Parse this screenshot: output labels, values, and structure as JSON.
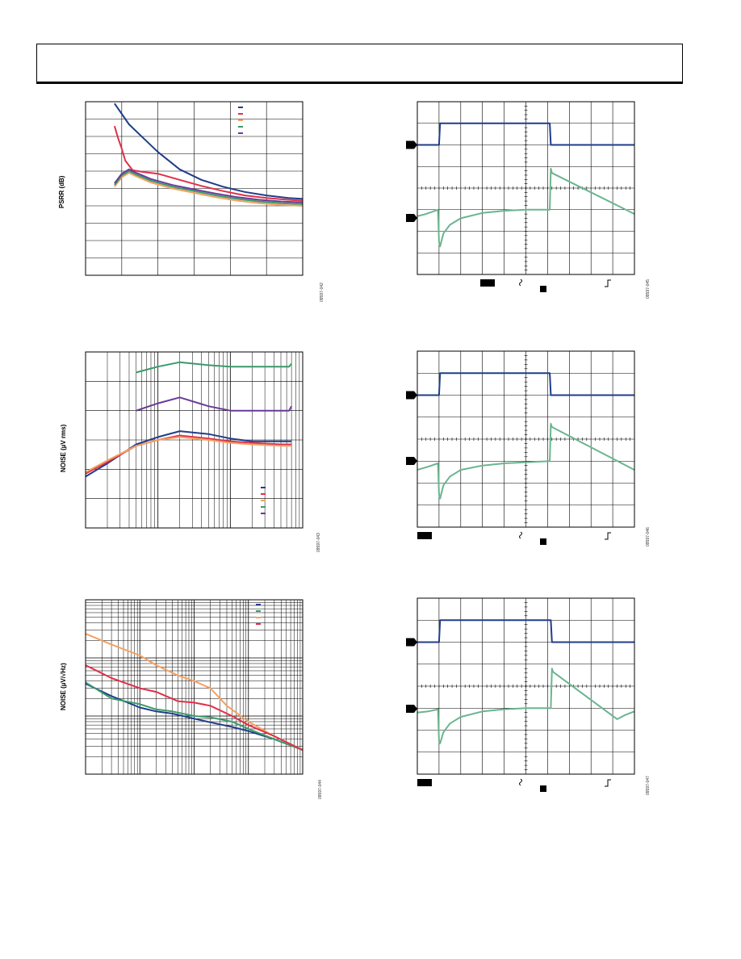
{
  "page": {
    "header_title": ""
  },
  "chart_data": [
    {
      "id": "psrr",
      "type": "line",
      "title": "",
      "xlabel": "",
      "ylabel": "PSRR (dB)",
      "figure_number": "09597-042",
      "xlim": [
        0,
        6
      ],
      "ylim": [
        0,
        10
      ],
      "grid": true,
      "legend_position": "top-right",
      "series": [
        {
          "color": "#1f3d8a",
          "x": [
            0.8,
            1.2,
            1.6,
            2,
            2.6,
            3.2,
            3.8,
            4.4,
            5,
            5.6,
            6
          ],
          "y": [
            9.9,
            8.7,
            7.9,
            7.1,
            6.1,
            5.5,
            5.1,
            4.8,
            4.6,
            4.45,
            4.4
          ]
        },
        {
          "color": "#e0304a",
          "x": [
            0.8,
            0.9,
            1.0,
            1.1,
            1.3,
            1.6,
            2,
            2.6,
            3.2,
            3.8,
            4.4,
            5,
            5.6,
            6
          ],
          "y": [
            8.6,
            7.9,
            7.3,
            6.6,
            6.05,
            5.95,
            5.85,
            5.5,
            5.15,
            4.85,
            4.6,
            4.45,
            4.35,
            4.3
          ]
        },
        {
          "color": "#f5a060",
          "x": [
            0.8,
            1.0,
            1.2,
            1.4,
            1.8,
            2.4,
            3,
            3.6,
            4.2,
            4.8,
            5.4,
            6
          ],
          "y": [
            5.1,
            5.65,
            5.9,
            5.7,
            5.35,
            5.0,
            4.75,
            4.5,
            4.3,
            4.15,
            4.05,
            4.0
          ]
        },
        {
          "color": "#3a9a6a",
          "x": [
            0.8,
            1.0,
            1.2,
            1.4,
            1.8,
            2.4,
            3,
            3.6,
            4.2,
            4.8,
            5.4,
            6
          ],
          "y": [
            5.2,
            5.75,
            6.0,
            5.8,
            5.45,
            5.1,
            4.85,
            4.6,
            4.4,
            4.25,
            4.15,
            4.1
          ]
        },
        {
          "color": "#6a3a9a",
          "x": [
            0.8,
            1.0,
            1.2,
            1.4,
            1.8,
            2.4,
            3,
            3.6,
            4.2,
            4.8,
            5.4,
            6
          ],
          "y": [
            5.3,
            5.85,
            6.1,
            5.9,
            5.55,
            5.2,
            4.95,
            4.7,
            4.5,
            4.35,
            4.25,
            4.2
          ]
        }
      ]
    },
    {
      "id": "noise-rms",
      "type": "line",
      "title": "",
      "xlabel": "",
      "ylabel": "NOISE (µV rms)",
      "figure_number": "09597-043",
      "xscale": "log",
      "xlim": [
        1,
        1000
      ],
      "ylim": [
        0,
        6
      ],
      "grid": true,
      "legend_position": "bottom-right",
      "series": [
        {
          "color": "#1f3d8a",
          "x": [
            1,
            2,
            5,
            10,
            20,
            50,
            100,
            200,
            500,
            700
          ],
          "y": [
            1.75,
            2.2,
            2.85,
            3.1,
            3.3,
            3.2,
            3.05,
            2.95,
            2.95,
            2.95
          ]
        },
        {
          "color": "#e0304a",
          "x": [
            1,
            2,
            5,
            10,
            20,
            50,
            100,
            200,
            500,
            700
          ],
          "y": [
            1.85,
            2.25,
            2.8,
            3.0,
            3.15,
            3.05,
            2.95,
            2.9,
            2.85,
            2.85
          ]
        },
        {
          "color": "#f5a060",
          "x": [
            1,
            2,
            5,
            10,
            20,
            50,
            100,
            200,
            500,
            700
          ],
          "y": [
            1.9,
            2.3,
            2.8,
            3.0,
            3.1,
            3.0,
            2.9,
            2.85,
            2.8,
            2.8
          ]
        },
        {
          "color": "#3a9a6a",
          "x": [
            5,
            10,
            20,
            50,
            100,
            200,
            500,
            650,
            700
          ],
          "y": [
            5.3,
            5.5,
            5.65,
            5.55,
            5.5,
            5.5,
            5.5,
            5.5,
            5.6
          ]
        },
        {
          "color": "#6a3a9a",
          "x": [
            5,
            10,
            20,
            50,
            100,
            200,
            500,
            650,
            700
          ],
          "y": [
            4.0,
            4.25,
            4.45,
            4.15,
            4.0,
            4.0,
            4.0,
            4.0,
            4.15
          ]
        }
      ]
    },
    {
      "id": "noise-density",
      "type": "line",
      "title": "",
      "xlabel": "",
      "ylabel": "NOISE (µV/√Hz)",
      "figure_number": "09597-044",
      "xscale": "log",
      "yscale": "log",
      "xlim": [
        10,
        100000
      ],
      "ylim": [
        0.01,
        10
      ],
      "grid": true,
      "legend_position": "top-right",
      "series": [
        {
          "color": "#1f3d8a",
          "x": [
            10,
            30,
            100,
            200,
            400,
            1000,
            2000,
            5000,
            10000,
            30000,
            100000
          ],
          "y": [
            0.36,
            0.22,
            0.14,
            0.12,
            0.11,
            0.09,
            0.078,
            0.065,
            0.055,
            0.04,
            0.026
          ]
        },
        {
          "color": "#3a9a6a",
          "x": [
            10,
            30,
            100,
            200,
            400,
            1000,
            2000,
            5000,
            10000,
            30000,
            100000
          ],
          "y": [
            0.38,
            0.2,
            0.16,
            0.13,
            0.12,
            0.1,
            0.095,
            0.08,
            0.06,
            0.04,
            0.026
          ]
        },
        {
          "color": "#f5a060",
          "x": [
            10,
            30,
            100,
            200,
            500,
            1000,
            2000,
            4000,
            10000,
            30000,
            100000
          ],
          "y": [
            2.6,
            1.7,
            1.1,
            0.75,
            0.5,
            0.4,
            0.3,
            0.15,
            0.08,
            0.045,
            0.026
          ]
        },
        {
          "color": "#e0304a",
          "x": [
            10,
            30,
            100,
            200,
            500,
            1000,
            2000,
            5000,
            10000,
            30000,
            100000
          ],
          "y": [
            0.75,
            0.45,
            0.3,
            0.26,
            0.18,
            0.17,
            0.15,
            0.1,
            0.07,
            0.045,
            0.026
          ]
        }
      ]
    },
    {
      "id": "scope-1",
      "type": "line",
      "title": "",
      "xlabel": "",
      "ylabel": "",
      "figure_number": "09597-045",
      "xlim": [
        0,
        10
      ],
      "ylim": [
        0,
        8
      ],
      "grid": true,
      "series": [
        {
          "color": "#1f3d8a",
          "x": [
            0,
            1.0,
            1.05,
            6.1,
            6.15,
            10
          ],
          "y": [
            6.0,
            6.0,
            7.0,
            7.0,
            6.0,
            6.0
          ]
        },
        {
          "color": "#6ab58f",
          "x": [
            0,
            0.4,
            0.95,
            1.0,
            1.05,
            1.2,
            1.5,
            2,
            3,
            4,
            5,
            6.1,
            6.15,
            6.2,
            10
          ],
          "y": [
            2.7,
            2.8,
            3.0,
            1.5,
            1.3,
            1.9,
            2.3,
            2.6,
            2.85,
            2.95,
            3.0,
            3.0,
            4.9,
            4.7,
            2.8
          ]
        }
      ]
    },
    {
      "id": "scope-2",
      "type": "line",
      "title": "",
      "xlabel": "",
      "ylabel": "",
      "figure_number": "09597-046",
      "xlim": [
        0,
        10
      ],
      "ylim": [
        0,
        8
      ],
      "grid": true,
      "series": [
        {
          "color": "#1f3d8a",
          "x": [
            0,
            1.0,
            1.05,
            6.1,
            6.15,
            10
          ],
          "y": [
            6.0,
            6.0,
            7.0,
            7.0,
            6.0,
            6.0
          ]
        },
        {
          "color": "#6ab58f",
          "x": [
            0,
            0.5,
            0.95,
            1.0,
            1.05,
            1.2,
            1.5,
            2,
            3,
            4,
            5,
            6.1,
            6.15,
            6.2,
            10
          ],
          "y": [
            2.6,
            2.75,
            2.9,
            1.5,
            1.3,
            1.9,
            2.3,
            2.6,
            2.8,
            2.9,
            2.95,
            3.0,
            4.7,
            4.55,
            2.6
          ]
        }
      ]
    },
    {
      "id": "scope-3",
      "type": "line",
      "title": "",
      "xlabel": "",
      "ylabel": "",
      "figure_number": "09597-047",
      "xlim": [
        0,
        10
      ],
      "ylim": [
        0,
        8
      ],
      "grid": true,
      "series": [
        {
          "color": "#1f3d8a",
          "x": [
            0,
            1.0,
            1.05,
            6.15,
            6.2,
            10
          ],
          "y": [
            6.0,
            6.0,
            7.0,
            7.0,
            6.0,
            6.0
          ]
        },
        {
          "color": "#6ab58f",
          "x": [
            0,
            0.5,
            0.95,
            1.0,
            1.05,
            1.2,
            1.5,
            2,
            3,
            4,
            5,
            6.15,
            6.2,
            6.25,
            9.2,
            9.6,
            10
          ],
          "y": [
            2.8,
            2.85,
            2.95,
            1.5,
            1.4,
            1.9,
            2.3,
            2.6,
            2.85,
            2.95,
            3.0,
            3.0,
            4.8,
            4.65,
            2.5,
            2.7,
            2.85
          ]
        }
      ]
    }
  ]
}
